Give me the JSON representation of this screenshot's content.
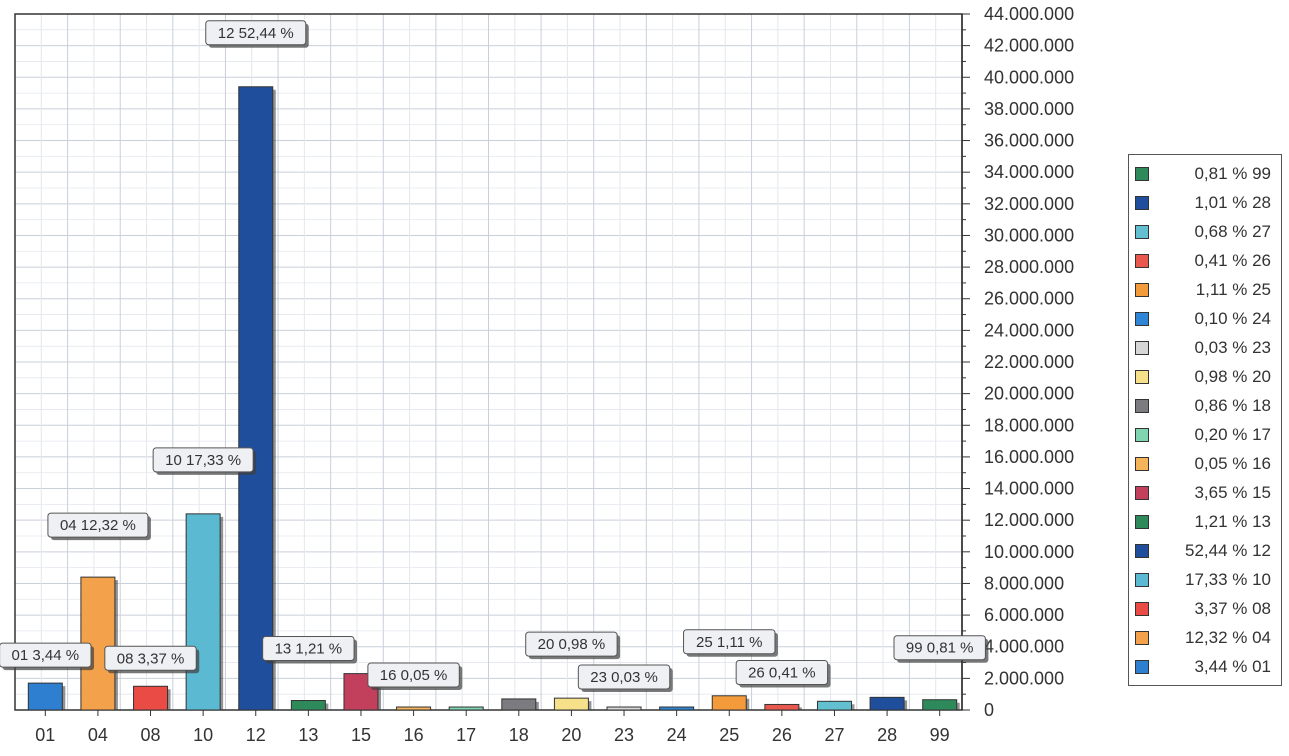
{
  "chart_data": {
    "type": "bar",
    "title": "",
    "xlabel": "",
    "ylabel": "",
    "ylim": [
      0,
      44000000
    ],
    "y_ticks": [
      "44.000.000",
      "42.000.000",
      "40.000.000",
      "38.000.000",
      "36.000.000",
      "34.000.000",
      "32.000.000",
      "30.000.000",
      "28.000.000",
      "26.000.000",
      "24.000.000",
      "22.000.000",
      "20.000.000",
      "18.000.000",
      "16.000.000",
      "14.000.000",
      "12.000.000",
      "10.000.000",
      "8.000.000",
      "6.000.000",
      "4.000.000",
      "2.000.000",
      "0"
    ],
    "grid": true,
    "legend_position": "right",
    "categories": [
      "01",
      "04",
      "08",
      "10",
      "12",
      "13",
      "15",
      "16",
      "17",
      "18",
      "20",
      "23",
      "24",
      "25",
      "26",
      "27",
      "28",
      "99"
    ],
    "values": [
      1700000,
      8400000,
      1500000,
      12400000,
      39400000,
      600000,
      2300000,
      40000,
      160000,
      700000,
      750000,
      30000,
      100000,
      900000,
      350000,
      550000,
      800000,
      650000
    ],
    "colors": [
      "#2f7fd0",
      "#f3a14a",
      "#ea4c45",
      "#5bb9d2",
      "#1f4f9c",
      "#2e8a5a",
      "#c2405c",
      "#f5b35a",
      "#80d4b0",
      "#7b7b80",
      "#f7e08a",
      "#d6d6d6",
      "#2f86d6",
      "#f39a3b",
      "#e8584d",
      "#63c0d0",
      "#1f4f9c",
      "#2e8a5a"
    ],
    "data_labels": [
      {
        "category": "01",
        "text": "01 3,44 %"
      },
      {
        "category": "04",
        "text": "04 12,32 %"
      },
      {
        "category": "08",
        "text": "08 3,37 %"
      },
      {
        "category": "10",
        "text": "10 17,33 %"
      },
      {
        "category": "12",
        "text": "12 52,44 %"
      },
      {
        "category": "13",
        "text": "13 1,21 %"
      },
      {
        "category": "16",
        "text": "16 0,05 %"
      },
      {
        "category": "20",
        "text": "20 0,98 %"
      },
      {
        "category": "23",
        "text": "23 0,03 %"
      },
      {
        "category": "25",
        "text": "25 1,11 %"
      },
      {
        "category": "26",
        "text": "26 0,41 %"
      },
      {
        "category": "99",
        "text": "99 0,81 %"
      }
    ]
  },
  "legend": {
    "items": [
      {
        "label": "0,81 % 99",
        "color": "#2e8a5a"
      },
      {
        "label": "1,01 % 28",
        "color": "#1f4f9c"
      },
      {
        "label": "0,68 % 27",
        "color": "#63c0d0"
      },
      {
        "label": "0,41 % 26",
        "color": "#e8584d"
      },
      {
        "label": "1,11 % 25",
        "color": "#f39a3b"
      },
      {
        "label": "0,10 % 24",
        "color": "#2f86d6"
      },
      {
        "label": "0,03 % 23",
        "color": "#d6d6d6"
      },
      {
        "label": "0,98 % 20",
        "color": "#f7e08a"
      },
      {
        "label": "0,86 % 18",
        "color": "#7b7b80"
      },
      {
        "label": "0,20 % 17",
        "color": "#80d4b0"
      },
      {
        "label": "0,05 % 16",
        "color": "#f5b35a"
      },
      {
        "label": "3,65 % 15",
        "color": "#c2405c"
      },
      {
        "label": "1,21 % 13",
        "color": "#2e8a5a"
      },
      {
        "label": "52,44 % 12",
        "color": "#1f4f9c"
      },
      {
        "label": "17,33 % 10",
        "color": "#5bb9d2"
      },
      {
        "label": "3,37 % 08",
        "color": "#ea4c45"
      },
      {
        "label": "12,32 % 04",
        "color": "#f3a14a"
      },
      {
        "label": "3,44 % 01",
        "color": "#2f7fd0"
      }
    ]
  }
}
